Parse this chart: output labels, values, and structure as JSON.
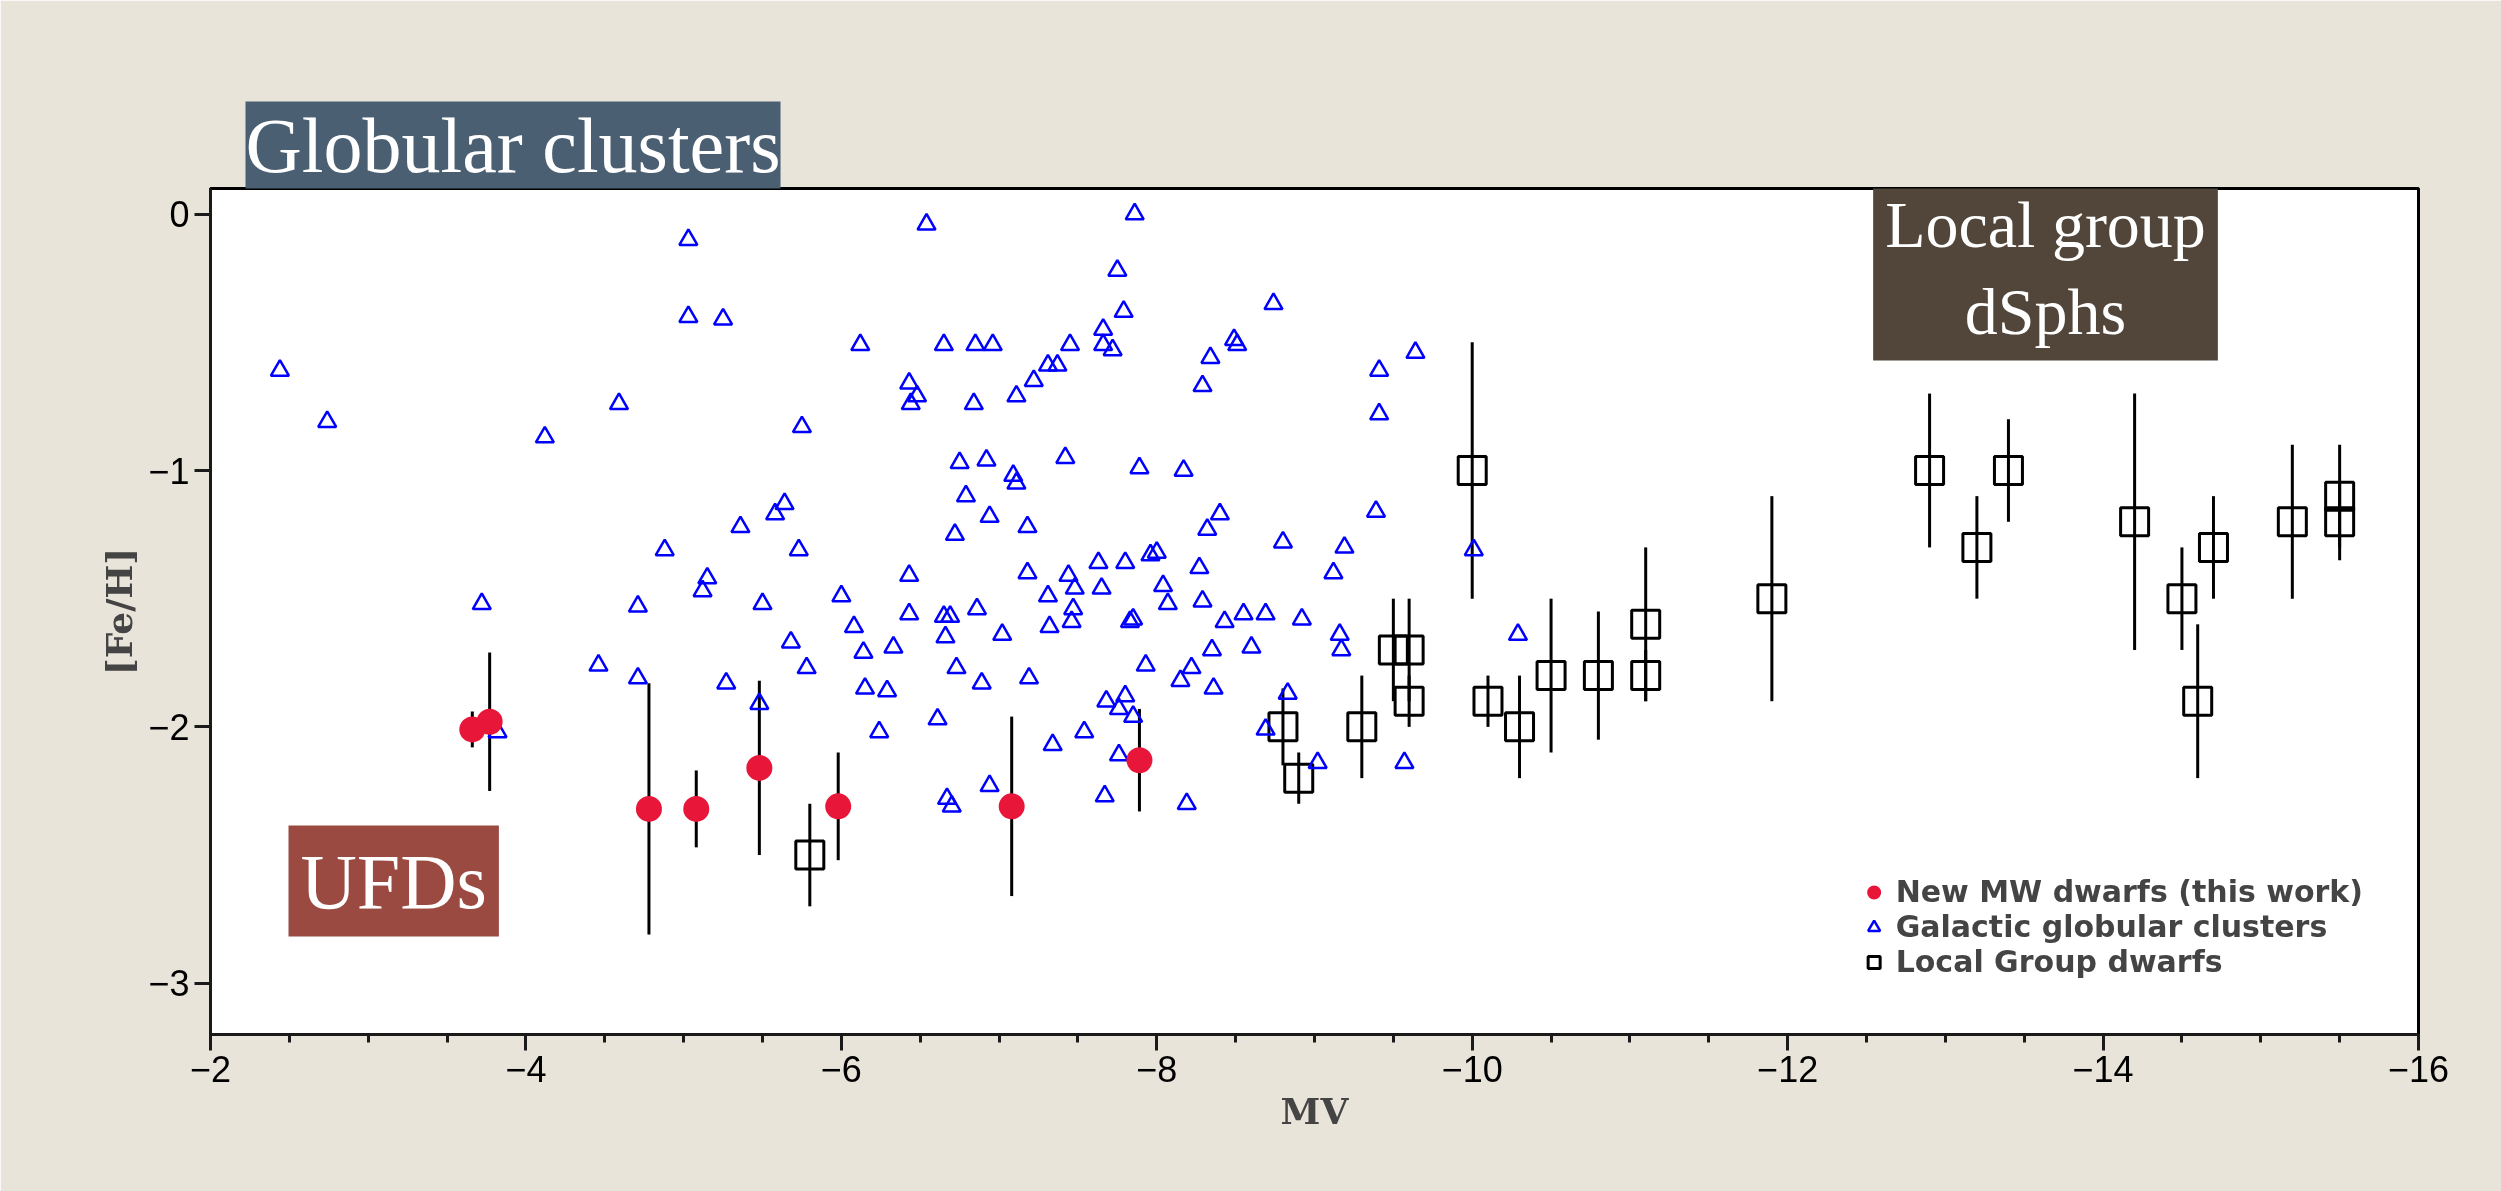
{
  "chart_data": {
    "type": "scatter",
    "xlabel": "MV",
    "ylabel": "[Fe/H]",
    "xlim": [
      -2,
      -16
    ],
    "ylim": [
      -3.2,
      0.1
    ],
    "xticks": [
      {
        "value": -2,
        "label": "−2"
      },
      {
        "value": -4,
        "label": "−4"
      },
      {
        "value": -6,
        "label": "−6"
      },
      {
        "value": -8,
        "label": "−8"
      },
      {
        "value": -10,
        "label": "−10"
      },
      {
        "value": -12,
        "label": "−12"
      },
      {
        "value": -14,
        "label": "−14"
      },
      {
        "value": -16,
        "label": "−16"
      }
    ],
    "yticks": [
      0,
      {
        "value": -1,
        "label": "−1"
      },
      {
        "value": -2,
        "label": "−2"
      },
      {
        "value": -3,
        "label": "−3"
      }
    ],
    "grid": false,
    "legend": "bottom right",
    "annotations": [
      "Globular clusters",
      "Local group\ndSphs",
      "UFDs"
    ],
    "series": [
      {
        "name": "New MW dwarfs (this work)",
        "color": "#e8173a",
        "marker": "circle",
        "x": [
          -3.66,
          -3.77,
          -4.78,
          -5.08,
          -5.48,
          -5.98,
          -7.08,
          -7.89
        ],
        "values": [
          -2.01,
          -1.98,
          -2.32,
          -2.32,
          -2.16,
          -2.31,
          -2.31,
          -2.13
        ],
        "errors": [
          0.07,
          0.27,
          0.49,
          0.15,
          0.34,
          0.21,
          0.35,
          0.2
        ]
      },
      {
        "name": "Galactic globular clusters",
        "color": "#0000ff",
        "marker": "triangle",
        "x": [
          -2.44,
          -2.74,
          -4.12,
          -4.59,
          -5.03,
          -5.03,
          -5.25,
          -6.12,
          -5.75,
          -3.72,
          -4.46,
          -4.71,
          -4.71,
          -4.88,
          -5.12,
          -5.15,
          -5.27,
          -5.36,
          -5.5,
          -5.48,
          -5.58,
          -5.64,
          -5.73,
          -5.68,
          -5.78,
          -6.0,
          -6.08,
          -6.14,
          -6.15,
          -6.29,
          -6.33,
          -6.24,
          -3.82,
          -6.54,
          -6.43,
          -6.48,
          -6.44,
          -6.65,
          -6.84,
          -6.85,
          -6.96,
          -7.11,
          -7.22,
          -7.31,
          -7.37,
          -7.45,
          -7.66,
          -7.66,
          -7.72,
          -7.75,
          -7.79,
          -7.86,
          -8.29,
          -8.34,
          -8.49,
          -8.51,
          -8.74,
          -9.41,
          -9.41,
          -9.64,
          -6.75,
          -6.92,
          -6.79,
          -6.94,
          -6.72,
          -7.09,
          -7.11,
          -7.18,
          -7.42,
          -7.89,
          -8.17,
          -8.4,
          -8.32,
          -9.39,
          -8.8,
          -9.19,
          -9.12,
          -10.01,
          -6.43,
          -6.43,
          -6.65,
          -6.69,
          -6.66,
          -6.86,
          -6.73,
          -7.02,
          -6.89,
          -7.19,
          -7.18,
          -7.31,
          -7.32,
          -7.44,
          -7.48,
          -7.47,
          -7.46,
          -7.63,
          -7.65,
          -7.8,
          -7.96,
          -8.0,
          -8.04,
          -8.07,
          -7.83,
          -7.85,
          -8.27,
          -8.29,
          -8.43,
          -8.55,
          -8.69,
          -8.92,
          -8.35,
          -8.6,
          -8.22,
          -8.15,
          -7.93,
          -8.36,
          -9.16,
          -9.17,
          -8.83,
          -10.29,
          -6.61,
          -7.68,
          -7.8,
          -7.76,
          -7.85,
          -7.34,
          -7.54,
          -7.76,
          -8.69,
          -9.02,
          -9.57,
          -6.67,
          -6.7,
          -6.94,
          -7.67,
          -8.19
        ],
        "values": [
          -0.61,
          -0.81,
          -0.87,
          -0.74,
          -0.1,
          -0.4,
          -0.41,
          -0.51,
          -0.83,
          -1.52,
          -1.76,
          -1.53,
          -1.81,
          -1.31,
          -1.47,
          -1.42,
          -1.83,
          -1.22,
          -1.52,
          -1.91,
          -1.17,
          -1.13,
          -1.31,
          -1.67,
          -1.77,
          -1.49,
          -1.61,
          -1.71,
          -1.85,
          -1.86,
          -1.69,
          -2.02,
          -2.02,
          -0.04,
          -0.66,
          -0.71,
          -0.74,
          -0.51,
          -0.74,
          -0.51,
          -0.51,
          -0.71,
          -0.65,
          -0.59,
          -0.59,
          -0.51,
          -0.45,
          -0.51,
          -0.53,
          -0.22,
          -0.38,
          0.0,
          -0.67,
          -0.56,
          -0.49,
          -0.51,
          -0.35,
          -0.61,
          -0.78,
          -0.54,
          -0.97,
          -0.96,
          -1.1,
          -1.18,
          -1.25,
          -1.02,
          -1.05,
          -1.22,
          -0.95,
          -0.99,
          -1.0,
          -1.17,
          -1.23,
          -1.16,
          -1.28,
          -1.3,
          -1.4,
          -1.31,
          -1.41,
          -1.56,
          -1.57,
          -1.57,
          -1.65,
          -1.54,
          -1.77,
          -1.64,
          -1.83,
          -1.81,
          -1.4,
          -1.49,
          -1.61,
          -1.41,
          -1.46,
          -1.54,
          -1.59,
          -1.36,
          -1.46,
          -1.36,
          -1.33,
          -1.32,
          -1.45,
          -1.52,
          -1.59,
          -1.58,
          -1.38,
          -1.51,
          -1.59,
          -1.56,
          -1.56,
          -1.58,
          -1.7,
          -1.69,
          -1.77,
          -1.82,
          -1.76,
          -1.85,
          -1.64,
          -1.7,
          -1.87,
          -1.64,
          -1.97,
          -1.9,
          -1.88,
          -1.93,
          -1.96,
          -2.07,
          -2.02,
          -2.11,
          -2.01,
          -2.14,
          -2.14,
          -2.28,
          -2.31,
          -2.23,
          -2.27,
          -2.3
        ]
      },
      {
        "name": "Local Group dwarfs",
        "color": "#000000",
        "marker": "square",
        "x": [
          -5.8,
          -8.8,
          -8.9,
          -9.3,
          -9.5,
          -9.6,
          -9.6,
          -10.0,
          -10.1,
          -10.3,
          -10.5,
          -10.8,
          -11.1,
          -11.1,
          -11.9,
          -12.9,
          -13.2,
          -13.4,
          -14.2,
          -14.5,
          -14.6,
          -14.7,
          -15.2,
          -15.5,
          -15.5
        ],
        "values": [
          -2.5,
          -2.0,
          -2.2,
          -2.0,
          -1.7,
          -1.7,
          -1.9,
          -1.0,
          -1.9,
          -2.0,
          -1.8,
          -1.8,
          -1.8,
          -1.6,
          -1.5,
          -1.0,
          -1.3,
          -1.0,
          -1.2,
          -1.5,
          -1.9,
          -1.3,
          -1.2,
          -1.1,
          -1.2
        ],
        "errors": [
          0.2,
          0.15,
          0.1,
          0.2,
          0.2,
          0.2,
          0.1,
          0.5,
          0.1,
          0.2,
          0.3,
          0.25,
          0.1,
          0.3,
          0.4,
          0.3,
          0.2,
          0.2,
          0.5,
          0.2,
          0.3,
          0.2,
          0.3,
          0.2,
          0.15
        ]
      }
    ]
  }
}
